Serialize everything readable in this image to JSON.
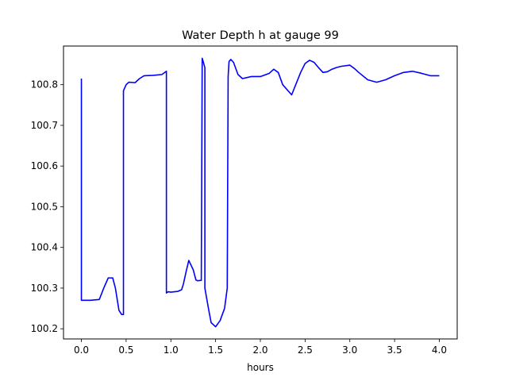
{
  "chart_data": {
    "type": "line",
    "title": "Water Depth h at gauge 99",
    "xlabel": "hours",
    "ylabel": "",
    "xlim": [
      -0.2,
      4.2
    ],
    "ylim": [
      100.175,
      100.895
    ],
    "xticks": [
      0.0,
      0.5,
      1.0,
      1.5,
      2.0,
      2.5,
      3.0,
      3.5,
      4.0
    ],
    "xtick_labels": [
      "0.0",
      "0.5",
      "1.0",
      "1.5",
      "2.0",
      "2.5",
      "3.0",
      "3.5",
      "4.0"
    ],
    "yticks": [
      100.2,
      100.3,
      100.4,
      100.5,
      100.6,
      100.7,
      100.8
    ],
    "ytick_labels": [
      "100.2",
      "100.3",
      "100.4",
      "100.5",
      "100.6",
      "100.7",
      "100.8"
    ],
    "grid": false,
    "series": [
      {
        "color": "#0000ff",
        "x": [
          0.0,
          0.0,
          0.1,
          0.2,
          0.25,
          0.3,
          0.35,
          0.38,
          0.42,
          0.45,
          0.47,
          0.47,
          0.5,
          0.53,
          0.6,
          0.65,
          0.7,
          0.8,
          0.9,
          0.95,
          0.95,
          0.97,
          1.0,
          1.08,
          1.12,
          1.14,
          1.17,
          1.2,
          1.25,
          1.28,
          1.3,
          1.34,
          1.35,
          1.36,
          1.38,
          1.38,
          1.42,
          1.45,
          1.5,
          1.55,
          1.6,
          1.63,
          1.64,
          1.65,
          1.67,
          1.7,
          1.75,
          1.8,
          1.9,
          2.0,
          2.1,
          2.15,
          2.2,
          2.25,
          2.35,
          2.45,
          2.5,
          2.55,
          2.6,
          2.65,
          2.7,
          2.75,
          2.8,
          2.85,
          2.9,
          3.0,
          3.05,
          3.1,
          3.2,
          3.3,
          3.4,
          3.5,
          3.6,
          3.7,
          3.8,
          3.9,
          4.0
        ],
        "y": [
          100.815,
          100.27,
          100.27,
          100.272,
          100.3,
          100.325,
          100.325,
          100.3,
          100.245,
          100.235,
          100.235,
          100.785,
          100.8,
          100.806,
          100.805,
          100.815,
          100.822,
          100.823,
          100.825,
          100.833,
          100.288,
          100.291,
          100.29,
          100.292,
          100.296,
          100.31,
          100.34,
          100.368,
          100.345,
          100.32,
          100.318,
          100.319,
          100.865,
          100.858,
          100.842,
          100.3,
          100.25,
          100.215,
          100.205,
          100.22,
          100.25,
          100.3,
          100.82,
          100.857,
          100.862,
          100.855,
          100.825,
          100.815,
          100.82,
          100.82,
          100.828,
          100.838,
          100.83,
          100.8,
          100.775,
          100.83,
          100.852,
          100.86,
          100.855,
          100.842,
          100.83,
          100.832,
          100.838,
          100.842,
          100.845,
          100.848,
          100.84,
          100.83,
          100.812,
          100.806,
          100.812,
          100.822,
          100.83,
          100.833,
          100.828,
          100.822,
          100.822
        ]
      }
    ]
  }
}
